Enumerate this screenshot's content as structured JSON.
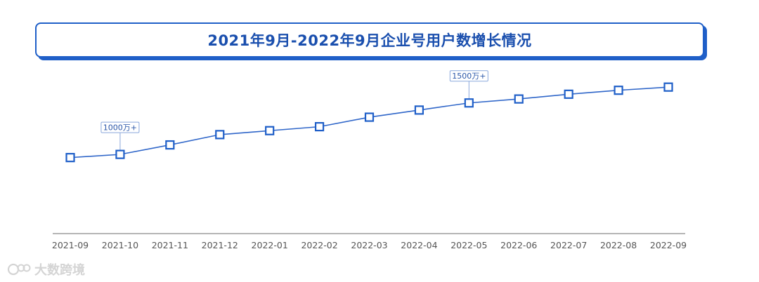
{
  "title": "2021年9月-2022年9月企业号用户数增长情况",
  "watermark": "大数跨境",
  "colors": {
    "line": "#2f66c9",
    "marker_border": "#1f5fc8",
    "marker_fill": "#ffffff",
    "axis": "#8a8a8a",
    "title_text": "#1a4fae",
    "annotation_border": "#8aa8dc"
  },
  "chart_data": {
    "type": "line",
    "categories": [
      "2021-09",
      "2021-10",
      "2021-11",
      "2021-12",
      "2022-01",
      "2022-02",
      "2022-03",
      "2022-04",
      "2022-05",
      "2022-06",
      "2022-07",
      "2022-08",
      "2022-09"
    ],
    "values": [
      960,
      1000,
      1120,
      1250,
      1300,
      1350,
      1470,
      1560,
      1650,
      1700,
      1760,
      1810,
      1850
    ],
    "ylim": [
      0,
      2950
    ],
    "grid": false,
    "annotations": [
      {
        "category": "2021-10",
        "label": "1000万+"
      },
      {
        "category": "2022-05",
        "label": "1500万+"
      }
    ]
  }
}
